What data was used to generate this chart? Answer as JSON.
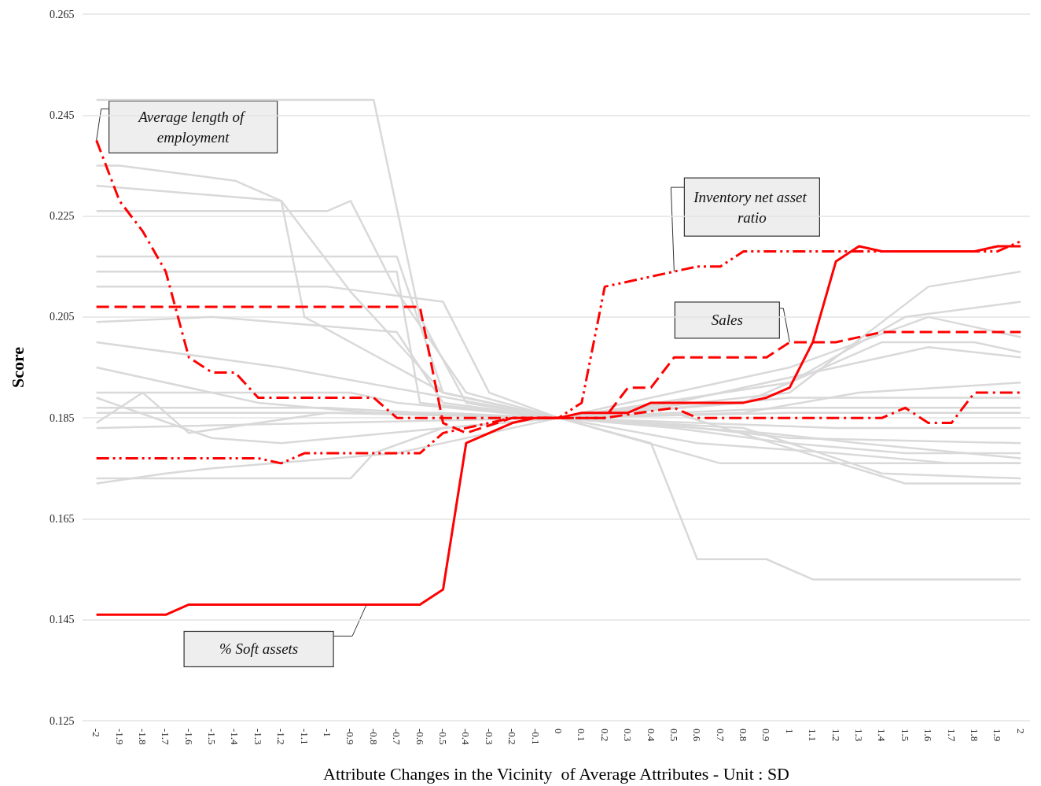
{
  "chart_data": {
    "type": "line",
    "xlabel": "Attribute Changes in the Vicinity  of Average Attributes - Unit : SD",
    "ylabel": "Score",
    "xlim": [
      -2.06,
      2.04
    ],
    "xticks": [
      -2,
      -1.9,
      -1.8,
      -1.7,
      -1.6,
      -1.5,
      -1.4,
      -1.3,
      -1.2,
      -1.1,
      -1,
      -0.9,
      -0.8,
      -0.7,
      -0.6,
      -0.5,
      -0.4,
      -0.3,
      -0.2,
      -0.1,
      0,
      0.1,
      0.2,
      0.3,
      0.4,
      0.5,
      0.6,
      0.7,
      0.8,
      0.9,
      1,
      1.1,
      1.2,
      1.3,
      1.4,
      1.5,
      1.6,
      1.7,
      1.8,
      1.9,
      2
    ],
    "ylim": [
      0.125,
      0.265
    ],
    "yticks": [
      0.125,
      0.145,
      0.165,
      0.185,
      0.205,
      0.225,
      0.245,
      0.265
    ],
    "grid": "y",
    "legend": false,
    "marker": "none",
    "series": [
      {
        "color": "#d9d9d9",
        "x": [
          -2,
          -0.8,
          -0.6,
          -0.4,
          0,
          0.4,
          0.6,
          0.9,
          1.1,
          2
        ],
        "values": [
          0.248,
          0.248,
          0.205,
          0.188,
          0.185,
          0.18,
          0.157,
          0.157,
          0.153,
          0.153
        ]
      },
      {
        "color": "#d9d9d9",
        "x": [
          -2,
          -1.9,
          -1.4,
          -1.2,
          -0.9,
          -0.5,
          0,
          1,
          1.6,
          2
        ],
        "values": [
          0.235,
          0.235,
          0.232,
          0.228,
          0.21,
          0.19,
          0.185,
          0.19,
          0.211,
          0.214
        ]
      },
      {
        "color": "#d9d9d9",
        "x": [
          -2,
          -1.2,
          -1.1,
          -0.5,
          0,
          1,
          1.5,
          2
        ],
        "values": [
          0.231,
          0.228,
          0.205,
          0.19,
          0.185,
          0.192,
          0.205,
          0.208
        ]
      },
      {
        "color": "#d9d9d9",
        "x": [
          -2,
          -1,
          -0.9,
          -0.7,
          -0.4,
          0,
          0.8,
          1.3,
          2
        ],
        "values": [
          0.226,
          0.226,
          0.228,
          0.21,
          0.19,
          0.185,
          0.186,
          0.19,
          0.192
        ]
      },
      {
        "color": "#d9d9d9",
        "x": [
          -2,
          -0.7,
          -0.5,
          0,
          0.5,
          1,
          1.5,
          2
        ],
        "values": [
          0.217,
          0.217,
          0.19,
          0.185,
          0.183,
          0.18,
          0.178,
          0.178
        ]
      },
      {
        "color": "#d9d9d9",
        "x": [
          -2,
          -0.7,
          -0.6,
          0,
          0.8,
          1.4,
          1.8,
          2
        ],
        "values": [
          0.214,
          0.214,
          0.188,
          0.185,
          0.188,
          0.2,
          0.2,
          0.198
        ]
      },
      {
        "color": "#d9d9d9",
        "x": [
          -2,
          -1,
          -0.5,
          -0.3,
          0,
          0.5,
          1,
          1.6,
          2
        ],
        "values": [
          0.211,
          0.211,
          0.208,
          0.19,
          0.185,
          0.19,
          0.195,
          0.205,
          0.201
        ]
      },
      {
        "color": "#d9d9d9",
        "x": [
          -2,
          -1.5,
          -0.7,
          -0.5,
          0,
          0.6,
          1.2,
          1.7,
          2
        ],
        "values": [
          0.204,
          0.205,
          0.202,
          0.188,
          0.185,
          0.18,
          0.178,
          0.176,
          0.176
        ]
      },
      {
        "color": "#d9d9d9",
        "x": [
          -2,
          -1.2,
          -0.6,
          0,
          1,
          2
        ],
        "values": [
          0.2,
          0.195,
          0.19,
          0.185,
          0.187,
          0.187
        ]
      },
      {
        "color": "#d9d9d9",
        "x": [
          -2,
          -1.3,
          -0.8,
          0,
          1.2,
          2
        ],
        "values": [
          0.195,
          0.188,
          0.186,
          0.185,
          0.183,
          0.183
        ]
      },
      {
        "color": "#d9d9d9",
        "x": [
          -2,
          -0.9,
          -0.7,
          0,
          0.9,
          1.3,
          2
        ],
        "values": [
          0.19,
          0.19,
          0.188,
          0.185,
          0.182,
          0.18,
          0.177
        ]
      },
      {
        "color": "#d9d9d9",
        "x": [
          -2,
          -1.5,
          -1.2,
          -0.5,
          0,
          0.5,
          1,
          2
        ],
        "values": [
          0.189,
          0.181,
          0.18,
          0.183,
          0.185,
          0.187,
          0.189,
          0.189
        ]
      },
      {
        "color": "#d9d9d9",
        "x": [
          -2,
          -1,
          -0.6,
          0,
          0.7,
          1.4,
          2
        ],
        "values": [
          0.187,
          0.187,
          0.186,
          0.185,
          0.176,
          0.176,
          0.176
        ]
      },
      {
        "color": "#d9d9d9",
        "x": [
          -2,
          -1.7,
          -1.5,
          -0.7,
          0,
          0.8,
          1.4,
          2
        ],
        "values": [
          0.172,
          0.174,
          0.175,
          0.178,
          0.185,
          0.183,
          0.174,
          0.173
        ]
      },
      {
        "color": "#d9d9d9",
        "x": [
          -2,
          -0.9,
          -0.8,
          -0.5,
          0,
          0.5,
          1.5,
          2
        ],
        "values": [
          0.173,
          0.173,
          0.178,
          0.183,
          0.185,
          0.186,
          0.172,
          0.172
        ]
      },
      {
        "color": "#d9d9d9",
        "x": [
          -2,
          -1.8,
          -1.6,
          -1,
          0,
          0.4,
          1,
          2
        ],
        "values": [
          0.184,
          0.19,
          0.182,
          0.186,
          0.185,
          0.184,
          0.181,
          0.18
        ]
      },
      {
        "color": "#d9d9d9",
        "x": [
          -2,
          -1,
          0,
          1,
          2
        ],
        "values": [
          0.183,
          0.184,
          0.185,
          0.186,
          0.186
        ]
      },
      {
        "color": "#d9d9d9",
        "x": [
          -2,
          -0.5,
          0,
          0.5,
          1.2,
          1.6,
          2
        ],
        "values": [
          0.186,
          0.186,
          0.185,
          0.188,
          0.195,
          0.199,
          0.197
        ]
      },
      {
        "name": "Average length of employment",
        "color": "#ff0000",
        "line_style": "dashdot",
        "x": [
          -2,
          -1.9,
          -1.8,
          -1.7,
          -1.6,
          -1.5,
          -1.4,
          -1.3,
          -0.8,
          -0.7,
          0.2,
          0.5,
          0.6,
          1.4,
          1.5,
          1.6,
          1.7,
          1.8,
          2
        ],
        "values": [
          0.24,
          0.228,
          0.222,
          0.214,
          0.197,
          0.194,
          0.194,
          0.189,
          0.189,
          0.185,
          0.185,
          0.187,
          0.185,
          0.185,
          0.187,
          0.184,
          0.184,
          0.19,
          0.19
        ]
      },
      {
        "name": "Inventory net asset ratio",
        "color": "#ff0000",
        "line_style": "dashdotdot",
        "x": [
          -2,
          -1.3,
          -1.2,
          -1.1,
          -0.6,
          -0.5,
          -0.2,
          0,
          0.1,
          0.2,
          0.4,
          0.5,
          0.6,
          0.7,
          0.8,
          1.2,
          1.9,
          2
        ],
        "values": [
          0.177,
          0.177,
          0.176,
          0.178,
          0.178,
          0.182,
          0.185,
          0.185,
          0.188,
          0.211,
          0.213,
          0.214,
          0.215,
          0.215,
          0.218,
          0.218,
          0.218,
          0.22
        ]
      },
      {
        "name": "Sales",
        "color": "#ff0000",
        "line_style": "dashed",
        "x": [
          -2,
          -0.6,
          -0.5,
          -0.4,
          -0.2,
          0,
          0.2,
          0.3,
          0.4,
          0.5,
          0.9,
          1,
          1.2,
          1.4,
          2
        ],
        "values": [
          0.207,
          0.207,
          0.184,
          0.182,
          0.185,
          0.185,
          0.185,
          0.191,
          0.191,
          0.197,
          0.197,
          0.2,
          0.2,
          0.202,
          0.202
        ]
      },
      {
        "name": "% Soft assets",
        "color": "#ff0000",
        "line_style": "solid",
        "x": [
          -2,
          -1.7,
          -1.6,
          -0.6,
          -0.5,
          -0.4,
          -0.3,
          -0.2,
          -0.1,
          0,
          0.1,
          0.3,
          0.4,
          0.8,
          0.9,
          1,
          1.1,
          1.2,
          1.3,
          1.4,
          1.8,
          1.9,
          2
        ],
        "values": [
          0.146,
          0.146,
          0.148,
          0.148,
          0.151,
          0.18,
          0.182,
          0.184,
          0.185,
          0.185,
          0.186,
          0.186,
          0.188,
          0.188,
          0.189,
          0.191,
          0.2,
          0.216,
          0.219,
          0.218,
          0.218,
          0.219,
          0.219
        ]
      }
    ]
  }
}
